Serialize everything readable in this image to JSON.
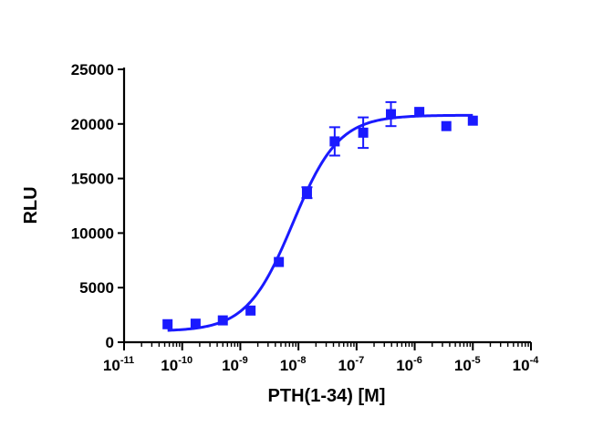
{
  "chart_data": {
    "type": "scatter",
    "title": "",
    "xlabel": "PTH(1-34) [M]",
    "ylabel": "RLU",
    "x_scale": "log10",
    "xlim": [
      1e-11,
      0.0001
    ],
    "ylim": [
      0,
      25000
    ],
    "x_ticks": [
      {
        "base": "10",
        "exp": "-11"
      },
      {
        "base": "10",
        "exp": "-10"
      },
      {
        "base": "10",
        "exp": "-9"
      },
      {
        "base": "10",
        "exp": "-8"
      },
      {
        "base": "10",
        "exp": "-7"
      },
      {
        "base": "10",
        "exp": "-6"
      },
      {
        "base": "10",
        "exp": "-5"
      },
      {
        "base": "10",
        "exp": "-4"
      }
    ],
    "y_ticks": [
      "0",
      "5000",
      "10000",
      "15000",
      "20000",
      "25000"
    ],
    "grid": false,
    "color": "#1a1aff",
    "series": [
      {
        "marker": "square",
        "points": [
          {
            "x": 5.6e-11,
            "y": 1650,
            "err": 0
          },
          {
            "x": 1.7e-10,
            "y": 1700,
            "err": 0
          },
          {
            "x": 5e-10,
            "y": 2000,
            "err": 0
          },
          {
            "x": 1.5e-09,
            "y": 2900,
            "err": 0
          },
          {
            "x": 4.6e-09,
            "y": 7350,
            "err": 0
          },
          {
            "x": 1.4e-08,
            "y": 13700,
            "err": 500
          },
          {
            "x": 4.2e-08,
            "y": 18400,
            "err": 1300
          },
          {
            "x": 1.3e-07,
            "y": 19200,
            "err": 1400
          },
          {
            "x": 3.9e-07,
            "y": 20900,
            "err": 1100
          },
          {
            "x": 1.2e-06,
            "y": 21100,
            "err": 0
          },
          {
            "x": 3.5e-06,
            "y": 19800,
            "err": 0
          },
          {
            "x": 1e-05,
            "y": 20300,
            "err": 0
          }
        ]
      }
    ],
    "fit_curve": {
      "model": "sigmoidal dose-response",
      "bottom": 1000,
      "top": 20800,
      "ec50": 8e-09,
      "hill": 1.1,
      "x_range": [
        5.6e-11,
        1e-05
      ]
    }
  }
}
